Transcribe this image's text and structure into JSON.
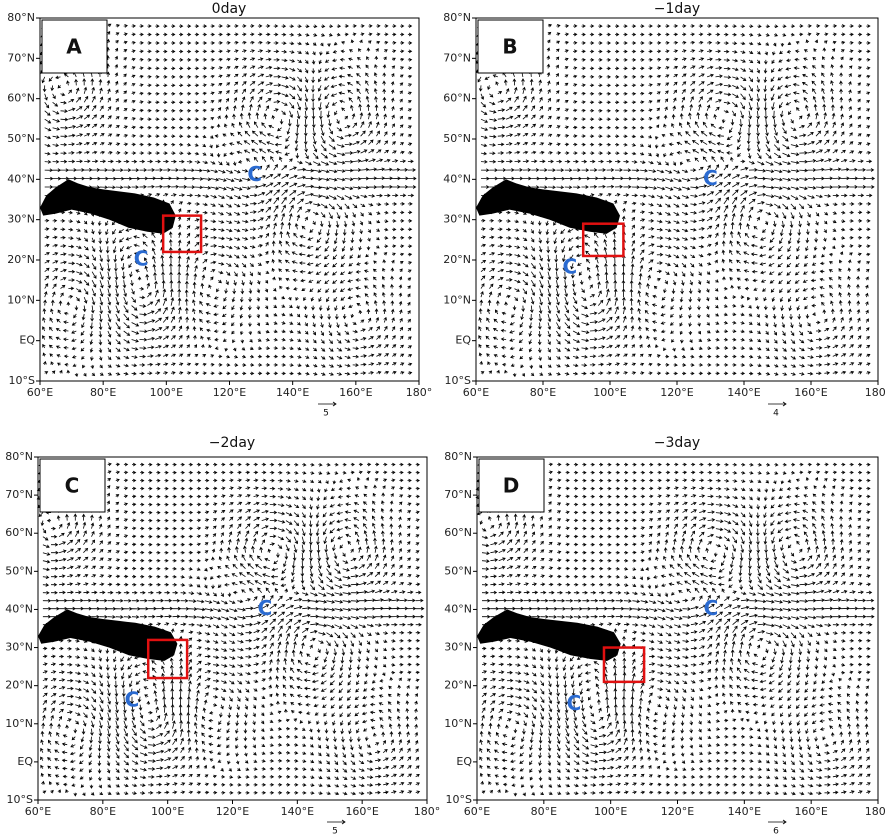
{
  "axes": {
    "x_labels": [
      "60°E",
      "80°E",
      "100°E",
      "120°E",
      "140°E",
      "160°E",
      "180°"
    ],
    "y_labels": [
      "80°N",
      "70°N",
      "60°N",
      "50°N",
      "40°N",
      "30°N",
      "20°N",
      "10°N",
      "EQ",
      "10°S"
    ]
  },
  "cyclone_mark": "C",
  "panels": [
    {
      "letter": "A",
      "title": "0day",
      "scale": "5"
    },
    {
      "letter": "B",
      "title": "−1day",
      "scale": "4"
    },
    {
      "letter": "C",
      "title": "−2day",
      "scale": "5"
    },
    {
      "letter": "D",
      "title": "−3day",
      "scale": "6"
    }
  ]
}
